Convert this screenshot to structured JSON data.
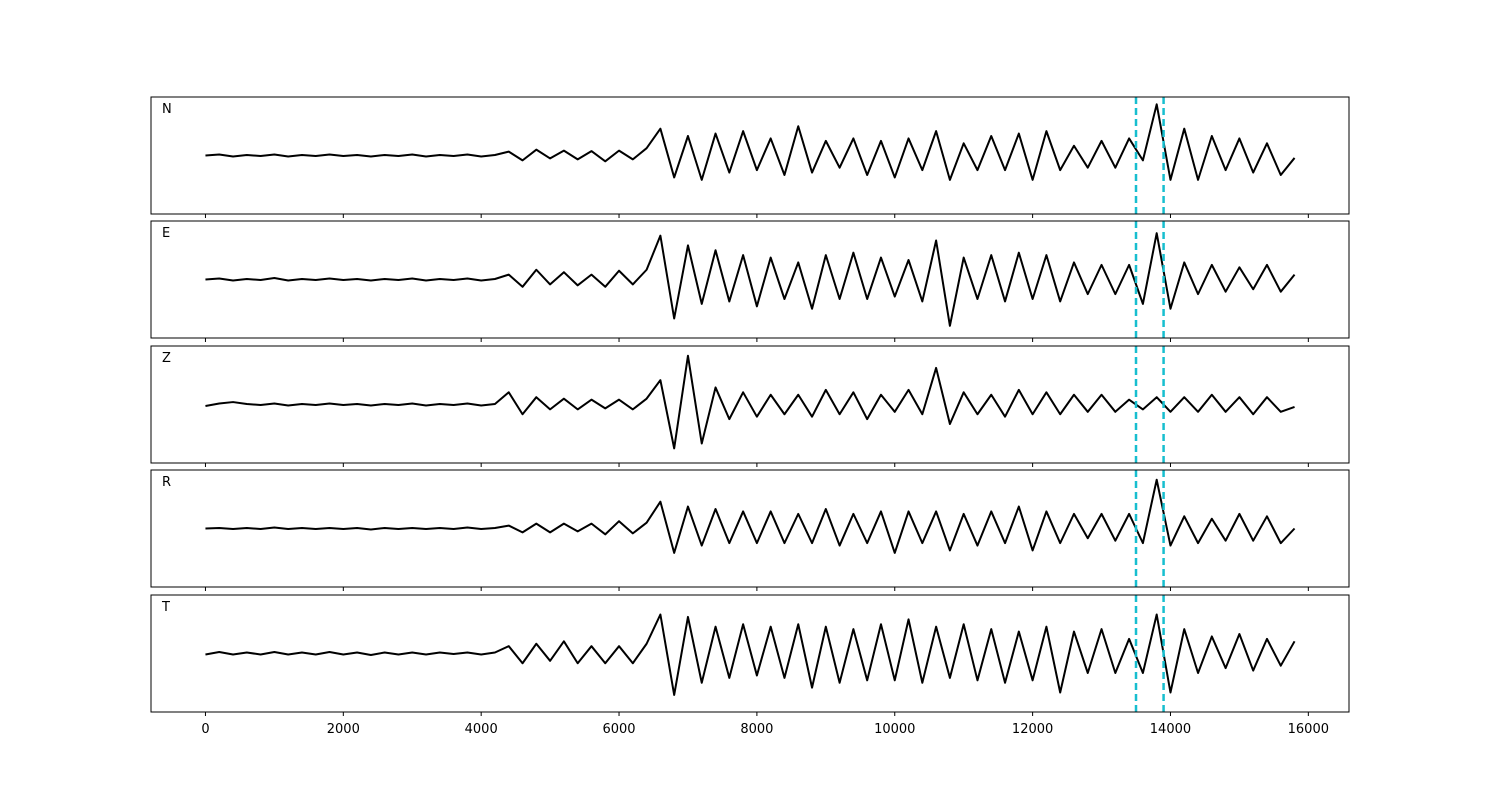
{
  "chart_data": [
    {
      "type": "line",
      "title": "N",
      "color": "#000000",
      "vline_color": "#17becf",
      "xlim": [
        -790,
        16590
      ],
      "ylim": [
        -1.2,
        1.2
      ],
      "xticks": [
        0,
        2000,
        4000,
        6000,
        8000,
        10000,
        12000,
        14000,
        16000
      ],
      "vlines": [
        13500,
        13900
      ],
      "x": [
        0,
        200,
        400,
        600,
        800,
        1000,
        1200,
        1400,
        1600,
        1800,
        2000,
        2200,
        2400,
        2600,
        2800,
        3000,
        3200,
        3400,
        3600,
        3800,
        4000,
        4200,
        4400,
        4600,
        4800,
        5000,
        5200,
        5400,
        5600,
        5800,
        6000,
        6200,
        6400,
        6600,
        6800,
        7000,
        7200,
        7400,
        7600,
        7800,
        8000,
        8200,
        8400,
        8600,
        8800,
        9000,
        9200,
        9400,
        9600,
        9800,
        10000,
        10200,
        10400,
        10600,
        10800,
        11000,
        11200,
        11400,
        11600,
        11800,
        12000,
        12200,
        12400,
        12600,
        12800,
        13000,
        13200,
        13400,
        13600,
        13800,
        14000,
        14200,
        14400,
        14600,
        14800,
        15000,
        15200,
        15400,
        15600,
        15800
      ],
      "values": [
        0,
        0.02,
        -0.02,
        0.01,
        -0.01,
        0.02,
        -0.02,
        0.01,
        -0.01,
        0.02,
        -0.01,
        0.01,
        -0.02,
        0.01,
        -0.01,
        0.02,
        -0.02,
        0.01,
        -0.01,
        0.02,
        -0.02,
        0.01,
        0.08,
        -0.1,
        0.12,
        -0.06,
        0.1,
        -0.08,
        0.09,
        -0.12,
        0.1,
        -0.08,
        0.15,
        0.55,
        -0.45,
        0.4,
        -0.5,
        0.45,
        -0.35,
        0.5,
        -0.3,
        0.35,
        -0.4,
        0.6,
        -0.35,
        0.3,
        -0.25,
        0.35,
        -0.4,
        0.3,
        -0.45,
        0.35,
        -0.3,
        0.5,
        -0.5,
        0.25,
        -0.3,
        0.4,
        -0.3,
        0.45,
        -0.5,
        0.5,
        -0.3,
        0.2,
        -0.25,
        0.3,
        -0.25,
        0.35,
        -0.1,
        1.05,
        -0.5,
        0.55,
        -0.5,
        0.4,
        -0.3,
        0.35,
        -0.35,
        0.25,
        -0.4,
        -0.05
      ]
    },
    {
      "type": "line",
      "title": "E",
      "color": "#000000",
      "vline_color": "#17becf",
      "xlim": [
        -790,
        16590
      ],
      "ylim": [
        -1.2,
        1.2
      ],
      "xticks": [
        0,
        2000,
        4000,
        6000,
        8000,
        10000,
        12000,
        14000,
        16000
      ],
      "vlines": [
        13500,
        13900
      ],
      "x": [
        0,
        200,
        400,
        600,
        800,
        1000,
        1200,
        1400,
        1600,
        1800,
        2000,
        2200,
        2400,
        2600,
        2800,
        3000,
        3200,
        3400,
        3600,
        3800,
        4000,
        4200,
        4400,
        4600,
        4800,
        5000,
        5200,
        5400,
        5600,
        5800,
        6000,
        6200,
        6400,
        6600,
        6800,
        7000,
        7200,
        7400,
        7600,
        7800,
        8000,
        8200,
        8400,
        8600,
        8800,
        9000,
        9200,
        9400,
        9600,
        9800,
        10000,
        10200,
        10400,
        10600,
        10800,
        11000,
        11200,
        11400,
        11600,
        11800,
        12000,
        12200,
        12400,
        12600,
        12800,
        13000,
        13200,
        13400,
        13600,
        13800,
        14000,
        14200,
        14400,
        14600,
        14800,
        15000,
        15200,
        15400,
        15600,
        15800
      ],
      "values": [
        0,
        0.02,
        -0.02,
        0.01,
        -0.01,
        0.03,
        -0.02,
        0.01,
        -0.01,
        0.02,
        -0.01,
        0.01,
        -0.02,
        0.01,
        -0.01,
        0.02,
        -0.02,
        0.01,
        -0.01,
        0.02,
        -0.02,
        0.01,
        0.1,
        -0.15,
        0.2,
        -0.1,
        0.15,
        -0.12,
        0.1,
        -0.15,
        0.18,
        -0.1,
        0.2,
        0.9,
        -0.8,
        0.7,
        -0.5,
        0.6,
        -0.45,
        0.5,
        -0.55,
        0.45,
        -0.4,
        0.35,
        -0.6,
        0.5,
        -0.4,
        0.55,
        -0.4,
        0.45,
        -0.35,
        0.4,
        -0.45,
        0.8,
        -0.95,
        0.45,
        -0.4,
        0.5,
        -0.45,
        0.55,
        -0.4,
        0.5,
        -0.45,
        0.35,
        -0.3,
        0.3,
        -0.3,
        0.3,
        -0.5,
        0.95,
        -0.6,
        0.35,
        -0.3,
        0.3,
        -0.25,
        0.25,
        -0.2,
        0.3,
        -0.25,
        0.1
      ]
    },
    {
      "type": "line",
      "title": "Z",
      "color": "#000000",
      "vline_color": "#17becf",
      "xlim": [
        -790,
        16590
      ],
      "ylim": [
        -1.2,
        1.2
      ],
      "xticks": [
        0,
        2000,
        4000,
        6000,
        8000,
        10000,
        12000,
        14000,
        16000
      ],
      "vlines": [
        13500,
        13900
      ],
      "x": [
        0,
        200,
        400,
        600,
        800,
        1000,
        1200,
        1400,
        1600,
        1800,
        2000,
        2200,
        2400,
        2600,
        2800,
        3000,
        3200,
        3400,
        3600,
        3800,
        4000,
        4200,
        4400,
        4600,
        4800,
        5000,
        5200,
        5400,
        5600,
        5800,
        6000,
        6200,
        6400,
        6600,
        6800,
        7000,
        7200,
        7400,
        7600,
        7800,
        8000,
        8200,
        8400,
        8600,
        8800,
        9000,
        9200,
        9400,
        9600,
        9800,
        10000,
        10200,
        10400,
        10600,
        10800,
        11000,
        11200,
        11400,
        11600,
        11800,
        12000,
        12200,
        12400,
        12600,
        12800,
        13000,
        13200,
        13400,
        13600,
        13800,
        14000,
        14200,
        14400,
        14600,
        14800,
        15000,
        15200,
        15400,
        15600,
        15800
      ],
      "values": [
        -0.03,
        0.02,
        0.05,
        0.01,
        -0.01,
        0.02,
        -0.02,
        0.01,
        -0.01,
        0.02,
        -0.01,
        0.01,
        -0.02,
        0.01,
        -0.01,
        0.02,
        -0.02,
        0.01,
        -0.01,
        0.02,
        -0.02,
        0.01,
        0.25,
        -0.2,
        0.15,
        -0.1,
        0.12,
        -0.1,
        0.1,
        -0.08,
        0.1,
        -0.1,
        0.12,
        0.5,
        -0.9,
        1.0,
        -0.8,
        0.35,
        -0.3,
        0.25,
        -0.25,
        0.2,
        -0.2,
        0.2,
        -0.25,
        0.3,
        -0.2,
        0.25,
        -0.3,
        0.2,
        -0.15,
        0.3,
        -0.2,
        0.75,
        -0.4,
        0.25,
        -0.2,
        0.2,
        -0.25,
        0.3,
        -0.2,
        0.25,
        -0.2,
        0.2,
        -0.15,
        0.2,
        -0.15,
        0.1,
        -0.1,
        0.15,
        -0.15,
        0.15,
        -0.15,
        0.2,
        -0.15,
        0.15,
        -0.2,
        0.15,
        -0.15,
        -0.05
      ]
    },
    {
      "type": "line",
      "title": "R",
      "color": "#000000",
      "vline_color": "#17becf",
      "xlim": [
        -790,
        16590
      ],
      "ylim": [
        -1.2,
        1.2
      ],
      "xticks": [
        0,
        2000,
        4000,
        6000,
        8000,
        10000,
        12000,
        14000,
        16000
      ],
      "vlines": [
        13500,
        13900
      ],
      "x": [
        0,
        200,
        400,
        600,
        800,
        1000,
        1200,
        1400,
        1600,
        1800,
        2000,
        2200,
        2400,
        2600,
        2800,
        3000,
        3200,
        3400,
        3600,
        3800,
        4000,
        4200,
        4400,
        4600,
        4800,
        5000,
        5200,
        5400,
        5600,
        5800,
        6000,
        6200,
        6400,
        6600,
        6800,
        7000,
        7200,
        7400,
        7600,
        7800,
        8000,
        8200,
        8400,
        8600,
        8800,
        9000,
        9200,
        9400,
        9600,
        9800,
        10000,
        10200,
        10400,
        10600,
        10800,
        11000,
        11200,
        11400,
        11600,
        11800,
        12000,
        12200,
        12400,
        12600,
        12800,
        13000,
        13200,
        13400,
        13600,
        13800,
        14000,
        14200,
        14400,
        14600,
        14800,
        15000,
        15200,
        15400,
        15600,
        15800
      ],
      "values": [
        0,
        0.01,
        -0.01,
        0.01,
        -0.01,
        0.02,
        -0.01,
        0.01,
        -0.01,
        0.01,
        -0.01,
        0.01,
        -0.02,
        0.01,
        -0.01,
        0.01,
        -0.01,
        0.01,
        -0.01,
        0.02,
        -0.01,
        0.01,
        0.06,
        -0.08,
        0.1,
        -0.08,
        0.1,
        -0.06,
        0.1,
        -0.12,
        0.15,
        -0.1,
        0.12,
        0.55,
        -0.5,
        0.45,
        -0.35,
        0.4,
        -0.3,
        0.35,
        -0.3,
        0.35,
        -0.3,
        0.3,
        -0.3,
        0.4,
        -0.35,
        0.3,
        -0.3,
        0.35,
        -0.5,
        0.35,
        -0.3,
        0.35,
        -0.45,
        0.3,
        -0.35,
        0.35,
        -0.3,
        0.45,
        -0.45,
        0.35,
        -0.3,
        0.3,
        -0.2,
        0.3,
        -0.25,
        0.3,
        -0.3,
        1.0,
        -0.35,
        0.25,
        -0.3,
        0.2,
        -0.25,
        0.3,
        -0.25,
        0.25,
        -0.3,
        0.0
      ]
    },
    {
      "type": "line",
      "title": "T",
      "color": "#000000",
      "vline_color": "#17becf",
      "xlim": [
        -790,
        16590
      ],
      "ylim": [
        -1.2,
        1.2
      ],
      "xticks": [
        0,
        2000,
        4000,
        6000,
        8000,
        10000,
        12000,
        14000,
        16000
      ],
      "vlines": [
        13500,
        13900
      ],
      "x": [
        0,
        200,
        400,
        600,
        800,
        1000,
        1200,
        1400,
        1600,
        1800,
        2000,
        2200,
        2400,
        2600,
        2800,
        3000,
        3200,
        3400,
        3600,
        3800,
        4000,
        4200,
        4400,
        4600,
        4800,
        5000,
        5200,
        5400,
        5600,
        5800,
        6000,
        6200,
        6400,
        6600,
        6800,
        7000,
        7200,
        7400,
        7600,
        7800,
        8000,
        8200,
        8400,
        8600,
        8800,
        9000,
        9200,
        9400,
        9600,
        9800,
        10000,
        10200,
        10400,
        10600,
        10800,
        11000,
        11200,
        11400,
        11600,
        11800,
        12000,
        12200,
        12400,
        12600,
        12800,
        13000,
        13200,
        13400,
        13600,
        13800,
        14000,
        14200,
        14400,
        14600,
        14800,
        15000,
        15200,
        15400,
        15600,
        15800
      ],
      "values": [
        -0.02,
        0.03,
        -0.02,
        0.02,
        -0.02,
        0.03,
        -0.02,
        0.02,
        -0.02,
        0.03,
        -0.02,
        0.02,
        -0.03,
        0.02,
        -0.02,
        0.02,
        -0.02,
        0.02,
        -0.01,
        0.02,
        -0.02,
        0.02,
        0.15,
        -0.2,
        0.2,
        -0.15,
        0.25,
        -0.2,
        0.15,
        -0.2,
        0.15,
        -0.2,
        0.2,
        0.8,
        -0.85,
        0.75,
        -0.6,
        0.55,
        -0.5,
        0.6,
        -0.45,
        0.55,
        -0.5,
        0.6,
        -0.7,
        0.55,
        -0.6,
        0.5,
        -0.55,
        0.6,
        -0.55,
        0.7,
        -0.6,
        0.55,
        -0.5,
        0.6,
        -0.55,
        0.5,
        -0.6,
        0.45,
        -0.55,
        0.55,
        -0.8,
        0.45,
        -0.4,
        0.5,
        -0.4,
        0.3,
        -0.4,
        0.8,
        -0.8,
        0.5,
        -0.4,
        0.35,
        -0.3,
        0.4,
        -0.35,
        0.3,
        -0.25,
        0.25
      ]
    }
  ]
}
